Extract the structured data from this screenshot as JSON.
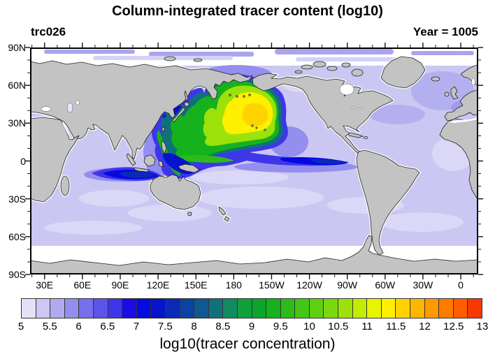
{
  "title": "Column-integrated tracer content (log10)",
  "tracer_label": "trc026",
  "year_label": "Year = 1005",
  "axes": {
    "lat_labels": [
      "90N",
      "60N",
      "30N",
      "0",
      "30S",
      "60S",
      "90S"
    ],
    "lon_labels": [
      "30E",
      "60E",
      "90E",
      "120E",
      "150E",
      "180",
      "150W",
      "120W",
      "90W",
      "60W",
      "30W",
      "0"
    ]
  },
  "colorbar": {
    "title": "log10(tracer concentration)",
    "tick_labels": [
      "5",
      "5.5",
      "6",
      "6.5",
      "7",
      "7.5",
      "8",
      "8.5",
      "9",
      "9.5",
      "10",
      "10.5",
      "11",
      "11.5",
      "12",
      "12.5",
      "13"
    ],
    "colors": [
      "#e3e0f8",
      "#ccc8f3",
      "#b0abf0",
      "#948eee",
      "#776fec",
      "#5b53ea",
      "#3f36e9",
      "#1a0ce9",
      "#0509e2",
      "#0713cc",
      "#0a2bb8",
      "#0c42a3",
      "#0e598f",
      "#10717b",
      "#128a62",
      "#0fa03c",
      "#0ca52c",
      "#16b21d",
      "#2cbc18",
      "#45c616",
      "#5fcf12",
      "#7cd80e",
      "#9ce20a",
      "#c3ec04",
      "#e9f500",
      "#fef000",
      "#ffd300",
      "#ffb600",
      "#ff9900",
      "#ff7b00",
      "#ff5d00",
      "#f93800"
    ]
  },
  "map": {
    "ocean_color": "#cac7f2",
    "ocean_pale": "#dbd8f7",
    "ocean_white": "#ffffff",
    "atlantic_shade": "#b4b0f0",
    "land_color": "#c3c3c3",
    "coast_color": "#222222",
    "frame_color": "#000000"
  },
  "chart_data": {
    "type": "heatmap",
    "title": "Column-integrated tracer content (log10)",
    "subtitle_left": "trc026",
    "subtitle_right": "Year = 1005",
    "projection": "equirectangular world map, Pacific-centered (longitude ~20E eastward through 180 to ~20E)",
    "x_ticks": [
      "30E",
      "60E",
      "90E",
      "120E",
      "150E",
      "180",
      "150W",
      "120W",
      "90W",
      "60W",
      "30W",
      "0"
    ],
    "y_ticks": [
      "90N",
      "60N",
      "30N",
      "0",
      "30S",
      "60S",
      "90S"
    ],
    "colorbar_levels": {
      "min": 5,
      "max": 13,
      "cell_step": 0.25,
      "label_step": 0.5
    },
    "colorbar_label": "log10(tracer concentration)",
    "land": "masked solid gray with black coastlines",
    "features": [
      {
        "region": "North Pacific plume, ~130E-140W / 15N-50N",
        "value_log10": "9.5-11.5 (green to yellow)",
        "peak": "~11.5-12 golden-orange core near 30-40N, 175E-155W"
      },
      {
        "region": "Plume rim, Kuroshio and East Asian marginal seas",
        "value_log10": "7-9 (blue to teal ring)"
      },
      {
        "region": "Equatorial Pacific band, ~140E-80W / 5N-3S",
        "value_log10": "7-8.5, darkest blue near South American coast"
      },
      {
        "region": "Indonesian seas and Philippine coast tongue",
        "value_log10": "7.5-9.5"
      },
      {
        "region": "South-equatorial Indian Ocean streak, ~55E-110E near 10S",
        "value_log10": "7-8 (dark blue lens)"
      },
      {
        "region": "Background world ocean",
        "value_log10": "5-6 pale lavender; below 5 shown white (coasts, Arctic, Antarctic rim)"
      }
    ]
  }
}
